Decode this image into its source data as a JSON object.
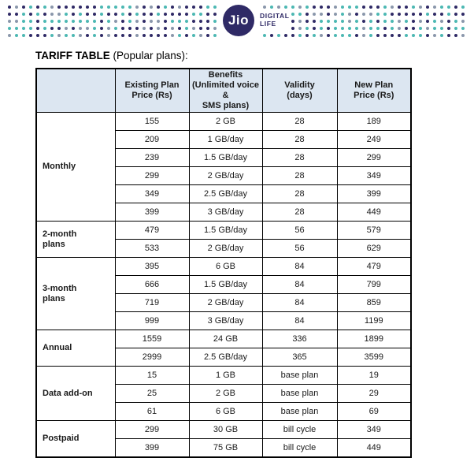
{
  "brand": {
    "logo_text": "Jio",
    "tagline": "DIGITAL\nLIFE",
    "navy": "#2f2a66",
    "teal": "#4cb8b3",
    "gray_blue": "#8a97ab",
    "header_bg": "#dce6f1"
  },
  "title": {
    "main": "TARIFF TABLE",
    "suffix": " (Popular plans):"
  },
  "table": {
    "columns": [
      "",
      "Existing Plan\nPrice (Rs)",
      "Benefits\n(Unlimited voice &\nSMS plans)",
      "Validity\n(days)",
      "New Plan\nPrice (Rs)"
    ],
    "groups": [
      {
        "label": "Monthly",
        "rows": [
          [
            "155",
            "2 GB",
            "28",
            "189"
          ],
          [
            "209",
            "1 GB/day",
            "28",
            "249"
          ],
          [
            "239",
            "1.5 GB/day",
            "28",
            "299"
          ],
          [
            "299",
            "2 GB/day",
            "28",
            "349"
          ],
          [
            "349",
            "2.5 GB/day",
            "28",
            "399"
          ],
          [
            "399",
            "3 GB/day",
            "28",
            "449"
          ]
        ]
      },
      {
        "label": "2-month\nplans",
        "rows": [
          [
            "479",
            "1.5 GB/day",
            "56",
            "579"
          ],
          [
            "533",
            "2 GB/day",
            "56",
            "629"
          ]
        ]
      },
      {
        "label": "3-month\nplans",
        "rows": [
          [
            "395",
            "6 GB",
            "84",
            "479"
          ],
          [
            "666",
            "1.5 GB/day",
            "84",
            "799"
          ],
          [
            "719",
            "2 GB/day",
            "84",
            "859"
          ],
          [
            "999",
            "3 GB/day",
            "84",
            "1199"
          ]
        ]
      },
      {
        "label": "Annual",
        "rows": [
          [
            "1559",
            "24 GB",
            "336",
            "1899"
          ],
          [
            "2999",
            "2.5 GB/day",
            "365",
            "3599"
          ]
        ]
      },
      {
        "label": "Data add-on",
        "rows": [
          [
            "15",
            "1 GB",
            "base plan",
            "19"
          ],
          [
            "25",
            "2 GB",
            "base plan",
            "29"
          ],
          [
            "61",
            "6 GB",
            "base plan",
            "69"
          ]
        ]
      },
      {
        "label": "Postpaid",
        "rows": [
          [
            "299",
            "30 GB",
            "bill cycle",
            "349"
          ],
          [
            "399",
            "75 GB",
            "bill cycle",
            "449"
          ]
        ]
      }
    ]
  }
}
